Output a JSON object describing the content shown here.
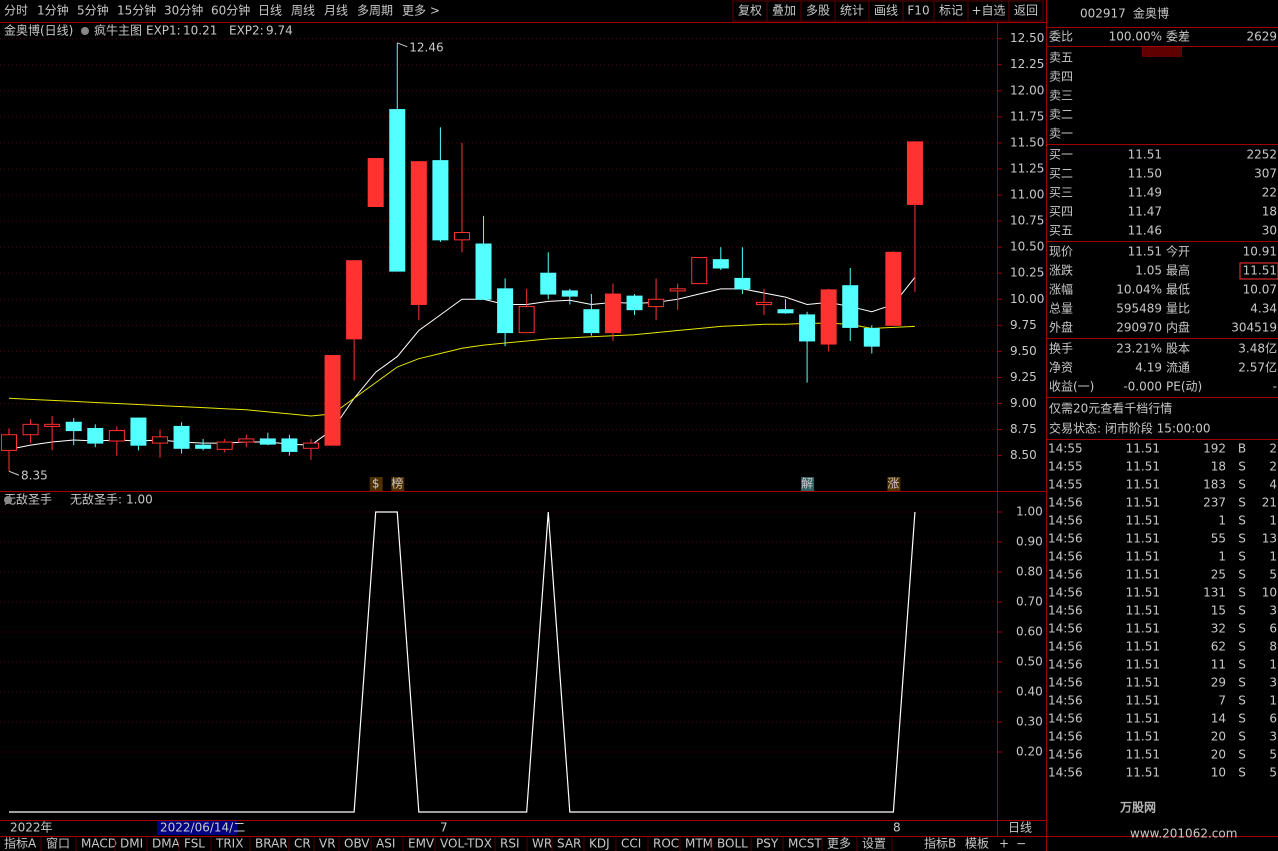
{
  "toolbar": {
    "periods": [
      "分时",
      "1分钟",
      "5分钟",
      "15分钟",
      "30分钟",
      "60分钟",
      "日线",
      "周线",
      "月线",
      "多周期",
      "更多 >"
    ],
    "buttons": [
      "复权",
      "叠加",
      "多股",
      "统计",
      "画线",
      "F10",
      "标记",
      "+自选",
      "返回"
    ]
  },
  "chart_data": {
    "type": "candlestick",
    "title": "金奥博(日线)",
    "subtitle": "疯牛主图",
    "ma_labels": [
      "EXP1:",
      "EXP2:"
    ],
    "up_color": "#ff3232",
    "down_color": "#54ffff",
    "candles": [
      {
        "o": 8.55,
        "h": 8.76,
        "l": 8.35,
        "c": 8.7
      },
      {
        "o": 8.7,
        "h": 8.85,
        "l": 8.62,
        "c": 8.8
      },
      {
        "o": 8.78,
        "h": 8.88,
        "l": 8.55,
        "c": 8.8
      },
      {
        "o": 8.82,
        "h": 8.86,
        "l": 8.6,
        "c": 8.74
      },
      {
        "o": 8.76,
        "h": 8.8,
        "l": 8.58,
        "c": 8.62
      },
      {
        "o": 8.64,
        "h": 8.78,
        "l": 8.5,
        "c": 8.74
      },
      {
        "o": 8.86,
        "h": 8.86,
        "l": 8.55,
        "c": 8.6
      },
      {
        "o": 8.62,
        "h": 8.75,
        "l": 8.48,
        "c": 8.68
      },
      {
        "o": 8.78,
        "h": 8.82,
        "l": 8.52,
        "c": 8.57
      },
      {
        "o": 8.6,
        "h": 8.66,
        "l": 8.55,
        "c": 8.57
      },
      {
        "o": 8.56,
        "h": 8.66,
        "l": 8.53,
        "c": 8.63
      },
      {
        "o": 8.63,
        "h": 8.7,
        "l": 8.58,
        "c": 8.66
      },
      {
        "o": 8.66,
        "h": 8.72,
        "l": 8.6,
        "c": 8.61
      },
      {
        "o": 8.66,
        "h": 8.7,
        "l": 8.5,
        "c": 8.54
      },
      {
        "o": 8.57,
        "h": 8.66,
        "l": 8.46,
        "c": 8.62
      },
      {
        "o": 8.6,
        "h": 9.46,
        "l": 8.6,
        "c": 9.46
      },
      {
        "o": 9.62,
        "h": 10.37,
        "l": 9.22,
        "c": 10.37
      },
      {
        "o": 10.89,
        "h": 11.35,
        "l": 10.89,
        "c": 11.35
      },
      {
        "o": 11.82,
        "h": 12.46,
        "l": 10.27,
        "c": 10.27
      },
      {
        "o": 9.95,
        "h": 11.32,
        "l": 9.8,
        "c": 11.32
      },
      {
        "o": 11.33,
        "h": 11.65,
        "l": 10.55,
        "c": 10.57
      },
      {
        "o": 10.57,
        "h": 11.5,
        "l": 10.45,
        "c": 10.64
      },
      {
        "o": 10.53,
        "h": 10.8,
        "l": 10.0,
        "c": 10.0
      },
      {
        "o": 10.1,
        "h": 10.2,
        "l": 9.55,
        "c": 9.68
      },
      {
        "o": 9.68,
        "h": 10.1,
        "l": 9.68,
        "c": 9.93
      },
      {
        "o": 10.25,
        "h": 10.45,
        "l": 10.0,
        "c": 10.05
      },
      {
        "o": 10.08,
        "h": 10.1,
        "l": 9.95,
        "c": 10.03
      },
      {
        "o": 9.9,
        "h": 10.05,
        "l": 9.65,
        "c": 9.68
      },
      {
        "o": 9.68,
        "h": 10.15,
        "l": 9.6,
        "c": 10.05
      },
      {
        "o": 10.03,
        "h": 10.05,
        "l": 9.85,
        "c": 9.9
      },
      {
        "o": 9.93,
        "h": 10.2,
        "l": 9.8,
        "c": 10.0
      },
      {
        "o": 10.08,
        "h": 10.15,
        "l": 9.9,
        "c": 10.1
      },
      {
        "o": 10.15,
        "h": 10.4,
        "l": 10.15,
        "c": 10.4
      },
      {
        "o": 10.38,
        "h": 10.5,
        "l": 10.28,
        "c": 10.3
      },
      {
        "o": 10.2,
        "h": 10.5,
        "l": 10.05,
        "c": 10.1
      },
      {
        "o": 9.95,
        "h": 10.1,
        "l": 9.85,
        "c": 9.97
      },
      {
        "o": 9.9,
        "h": 10.0,
        "l": 9.86,
        "c": 9.87
      },
      {
        "o": 9.85,
        "h": 9.88,
        "l": 9.2,
        "c": 9.6
      },
      {
        "o": 9.57,
        "h": 10.1,
        "l": 9.5,
        "c": 10.09
      },
      {
        "o": 10.13,
        "h": 10.3,
        "l": 9.6,
        "c": 9.73
      },
      {
        "o": 9.72,
        "h": 9.75,
        "l": 9.48,
        "c": 9.55
      },
      {
        "o": 9.75,
        "h": 10.46,
        "l": 9.75,
        "c": 10.45
      },
      {
        "o": 10.91,
        "h": 11.51,
        "l": 10.07,
        "c": 11.51
      }
    ],
    "series": [
      {
        "name": "EXP1",
        "color": "#ffffff",
        "values": [
          8.56,
          8.6,
          8.63,
          8.65,
          8.64,
          8.65,
          8.64,
          8.65,
          8.63,
          8.62,
          8.62,
          8.63,
          8.63,
          8.61,
          8.6,
          8.75,
          9.05,
          9.3,
          9.45,
          9.7,
          9.85,
          10.0,
          10.0,
          9.95,
          9.95,
          9.98,
          9.99,
          9.95,
          9.97,
          9.96,
          9.97,
          10.0,
          10.05,
          10.1,
          10.1,
          10.06,
          10.02,
          9.95,
          9.97,
          9.93,
          9.88,
          9.95,
          10.21
        ]
      },
      {
        "name": "EXP2",
        "color": "#e6e600",
        "values": [
          9.05,
          9.04,
          9.03,
          9.02,
          9.01,
          9.0,
          8.99,
          8.98,
          8.97,
          8.96,
          8.95,
          8.94,
          8.92,
          8.9,
          8.88,
          8.9,
          9.05,
          9.2,
          9.35,
          9.43,
          9.48,
          9.53,
          9.56,
          9.58,
          9.6,
          9.62,
          9.63,
          9.64,
          9.65,
          9.66,
          9.68,
          9.7,
          9.72,
          9.74,
          9.75,
          9.76,
          9.76,
          9.77,
          9.77,
          9.76,
          9.72,
          9.73,
          9.74
        ]
      }
    ],
    "signals": [
      null,
      null,
      null,
      null,
      null,
      null,
      null,
      null,
      null,
      null,
      null,
      null,
      null,
      null,
      null,
      null,
      null,
      "$",
      "榜",
      null,
      null,
      null,
      null,
      null,
      null,
      null,
      null,
      null,
      null,
      null,
      null,
      null,
      null,
      null,
      null,
      null,
      null,
      "解",
      null,
      null,
      null,
      "涨",
      null
    ],
    "ylim": [
      8.17,
      12.66
    ],
    "yticks": [
      {
        "value": 12.5,
        "label": "12.50"
      },
      12.25,
      {
        "value": 12,
        "label": "12.00"
      },
      11.75,
      {
        "value": 11.5,
        "label": "11.50"
      },
      11.25,
      {
        "value": 11,
        "label": "11.00"
      },
      10.75,
      {
        "value": 10.5,
        "label": "10.50"
      },
      10.25,
      {
        "value": 10,
        "label": "10.00"
      },
      9.75,
      {
        "value": 9.5,
        "label": "9.50"
      },
      9.25,
      {
        "value": 9,
        "label": "9.00"
      },
      8.75,
      {
        "value": 8.5,
        "label": "8.50"
      }
    ],
    "indicator": {
      "type": "line",
      "title": "无敌圣手",
      "label": "无敌圣手:",
      "color": "#ffffff",
      "current": {
        "value": 1,
        "label": "1.00"
      },
      "values": [
        0,
        0,
        0,
        0,
        0,
        0,
        0,
        0,
        0,
        0,
        0,
        0,
        0,
        0,
        0,
        0,
        0,
        1,
        1,
        0,
        0,
        0,
        0,
        0,
        0,
        1,
        0,
        0,
        0,
        0,
        0,
        0,
        0,
        0,
        0,
        0,
        0,
        0,
        0,
        0,
        0,
        0,
        1
      ],
      "ylim": [
        -0.02,
        1.06
      ],
      "yticks": [
        {
          "value": 1,
          "label": "1.00"
        },
        {
          "value": 0.9,
          "label": "0.90"
        },
        {
          "value": 0.8,
          "label": "0.80"
        },
        {
          "value": 0.7,
          "label": "0.70"
        },
        {
          "value": 0.6,
          "label": "0.60"
        },
        {
          "value": 0.5,
          "label": "0.50"
        },
        {
          "value": 0.4,
          "label": "0.40"
        },
        {
          "value": 0.3,
          "label": "0.30"
        },
        {
          "value": 0.2,
          "label": "0.20"
        }
      ]
    },
    "date_bar": [
      "2022年",
      "2022/06/14/二",
      "7",
      "8",
      "日线"
    ]
  },
  "tabs": [
    "指标A",
    "窗口",
    "MACD",
    "DMI",
    "DMA",
    "FSL",
    "TRIX",
    "BRAR",
    "CR",
    "VR",
    "OBV",
    "ASI",
    "EMV",
    "VOL-TDX",
    "RSI",
    "WR",
    "SAR",
    "KDJ",
    "CCI",
    "ROC",
    "MTM",
    "BOLL",
    "PSY",
    "MCST",
    "更多",
    "设置"
  ],
  "tabs_right": [
    "指标B",
    "模板",
    "+",
    "−"
  ],
  "quote": {
    "code": "002917",
    "name": "金奥博",
    "weibi": [
      "委比",
      "100.00%",
      "委差",
      "2629"
    ],
    "sells": [
      "卖五",
      "卖四",
      "卖三",
      "卖二",
      "卖一"
    ],
    "buys": [
      [
        "买一",
        "11.51",
        "2252"
      ],
      [
        "买二",
        "11.50",
        "307"
      ],
      [
        "买三",
        "11.49",
        "22"
      ],
      [
        "买四",
        "11.47",
        "18"
      ],
      [
        "买五",
        "11.46",
        "30"
      ]
    ],
    "quotes": [
      [
        "现价",
        "11.51",
        "今开",
        "10.91"
      ],
      [
        "涨跌",
        "1.05",
        "最高",
        "11.51"
      ],
      [
        "涨幅",
        "10.04%",
        "最低",
        "10.07"
      ],
      [
        "总量",
        "595489",
        "量比",
        "4.34"
      ],
      [
        "外盘",
        "290970",
        "内盘",
        "304519"
      ]
    ],
    "stats": [
      [
        "换手",
        "23.21%",
        "股本",
        "3.48亿"
      ],
      [
        "净资",
        "4.19",
        "流通",
        "2.57亿"
      ],
      [
        "收益(一)",
        "-0.000",
        "PE(动)",
        "-"
      ]
    ],
    "promo": "仅需20元查看千档行情",
    "status": "交易状态: 闭市阶段 15:00:00",
    "trades": [
      [
        "14:55",
        "11.51",
        "192",
        "B",
        "2"
      ],
      [
        "14:55",
        "11.51",
        "18",
        "S",
        "2"
      ],
      [
        "14:55",
        "11.51",
        "183",
        "S",
        "4"
      ],
      [
        "14:56",
        "11.51",
        "237",
        "S",
        "21"
      ],
      [
        "14:56",
        "11.51",
        "1",
        "S",
        "1"
      ],
      [
        "14:56",
        "11.51",
        "55",
        "S",
        "13"
      ],
      [
        "14:56",
        "11.51",
        "1",
        "S",
        "1"
      ],
      [
        "14:56",
        "11.51",
        "25",
        "S",
        "5"
      ],
      [
        "14:56",
        "11.51",
        "131",
        "S",
        "10"
      ],
      [
        "14:56",
        "11.51",
        "15",
        "S",
        "3"
      ],
      [
        "14:56",
        "11.51",
        "32",
        "S",
        "6"
      ],
      [
        "14:56",
        "11.51",
        "62",
        "S",
        "8"
      ],
      [
        "14:56",
        "11.51",
        "11",
        "S",
        "1"
      ],
      [
        "14:56",
        "11.51",
        "29",
        "S",
        "3"
      ],
      [
        "14:56",
        "11.51",
        "7",
        "S",
        "1"
      ],
      [
        "14:56",
        "11.51",
        "14",
        "S",
        "6"
      ],
      [
        "14:56",
        "11.51",
        "20",
        "S",
        "3"
      ],
      [
        "14:56",
        "11.51",
        "20",
        "S",
        "5"
      ],
      [
        "14:56",
        "11.51",
        "10",
        "S",
        "5"
      ]
    ],
    "watermark": [
      "万股网",
      "www.201062.com"
    ]
  }
}
